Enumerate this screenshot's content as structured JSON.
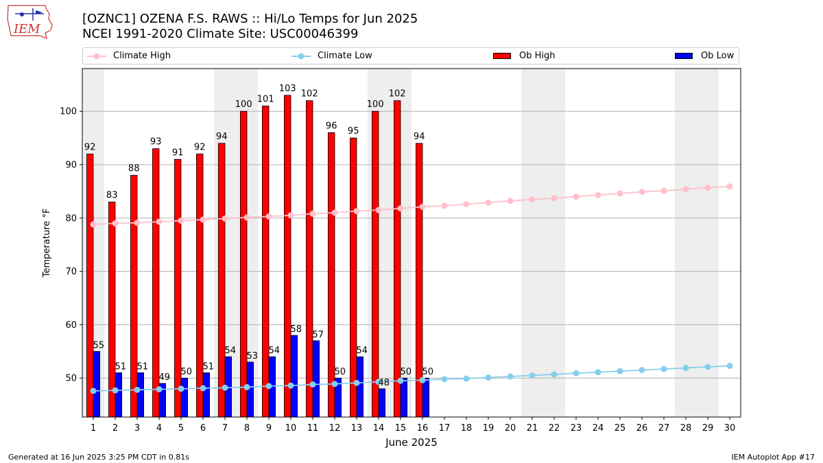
{
  "header": {
    "title_line1": "[OZNC1] OZENA F.S. RAWS :: Hi/Lo Temps for Jun 2025",
    "title_line2": "NCEI 1991-2020 Climate Site: USC00046399"
  },
  "logo": {
    "text": "IEM",
    "color": "#cc3333"
  },
  "legend": {
    "climate_high": "Climate High",
    "climate_low": "Climate Low",
    "ob_high": "Ob High",
    "ob_low": "Ob Low"
  },
  "footer": {
    "left": "Generated at 16 Jun 2025 3:25 PM CDT in 0.81s",
    "right": "IEM Autoplot App #17"
  },
  "colors": {
    "ob_high": "#ff0000",
    "ob_low": "#0000ff",
    "climate_high": "#ffc0cb",
    "climate_low": "#87ceeb",
    "weekend_shade": "#eeeeee",
    "grid": "#b0b0b0"
  },
  "chart_data": {
    "type": "bar",
    "xlabel": "June 2025",
    "ylabel": "Temperature °F",
    "ylim": [
      42.7,
      108
    ],
    "yticks": [
      50,
      60,
      70,
      80,
      90,
      100
    ],
    "grid": "horizontal",
    "legend_position": "top",
    "days": [
      1,
      2,
      3,
      4,
      5,
      6,
      7,
      8,
      9,
      10,
      11,
      12,
      13,
      14,
      15,
      16,
      17,
      18,
      19,
      20,
      21,
      22,
      23,
      24,
      25,
      26,
      27,
      28,
      29,
      30
    ],
    "weekend_days": [
      1,
      7,
      8,
      14,
      15,
      21,
      22,
      28,
      29
    ],
    "series": [
      {
        "name": "Ob High",
        "kind": "bar",
        "values": [
          92,
          83,
          88,
          93,
          91,
          92,
          94,
          100,
          101,
          103,
          102,
          96,
          95,
          100,
          102,
          94
        ]
      },
      {
        "name": "Ob Low",
        "kind": "bar",
        "values": [
          55,
          51,
          51,
          49,
          50,
          51,
          54,
          53,
          54,
          58,
          57,
          50,
          54,
          48,
          50,
          50
        ]
      },
      {
        "name": "Climate High",
        "kind": "line",
        "values": [
          78.8,
          79.0,
          79.1,
          79.3,
          79.5,
          79.7,
          79.9,
          80.1,
          80.3,
          80.5,
          80.8,
          81.0,
          81.3,
          81.5,
          81.8,
          82.1,
          82.3,
          82.6,
          82.9,
          83.2,
          83.5,
          83.7,
          84.0,
          84.3,
          84.6,
          84.9,
          85.1,
          85.4,
          85.7,
          85.9
        ]
      },
      {
        "name": "Climate Low",
        "kind": "line",
        "values": [
          47.6,
          47.7,
          47.8,
          47.9,
          48.0,
          48.1,
          48.2,
          48.3,
          48.5,
          48.6,
          48.8,
          48.9,
          49.1,
          49.3,
          49.5,
          49.6,
          49.8,
          49.9,
          50.1,
          50.3,
          50.5,
          50.7,
          50.9,
          51.1,
          51.3,
          51.5,
          51.7,
          51.9,
          52.1,
          52.3
        ]
      }
    ]
  }
}
